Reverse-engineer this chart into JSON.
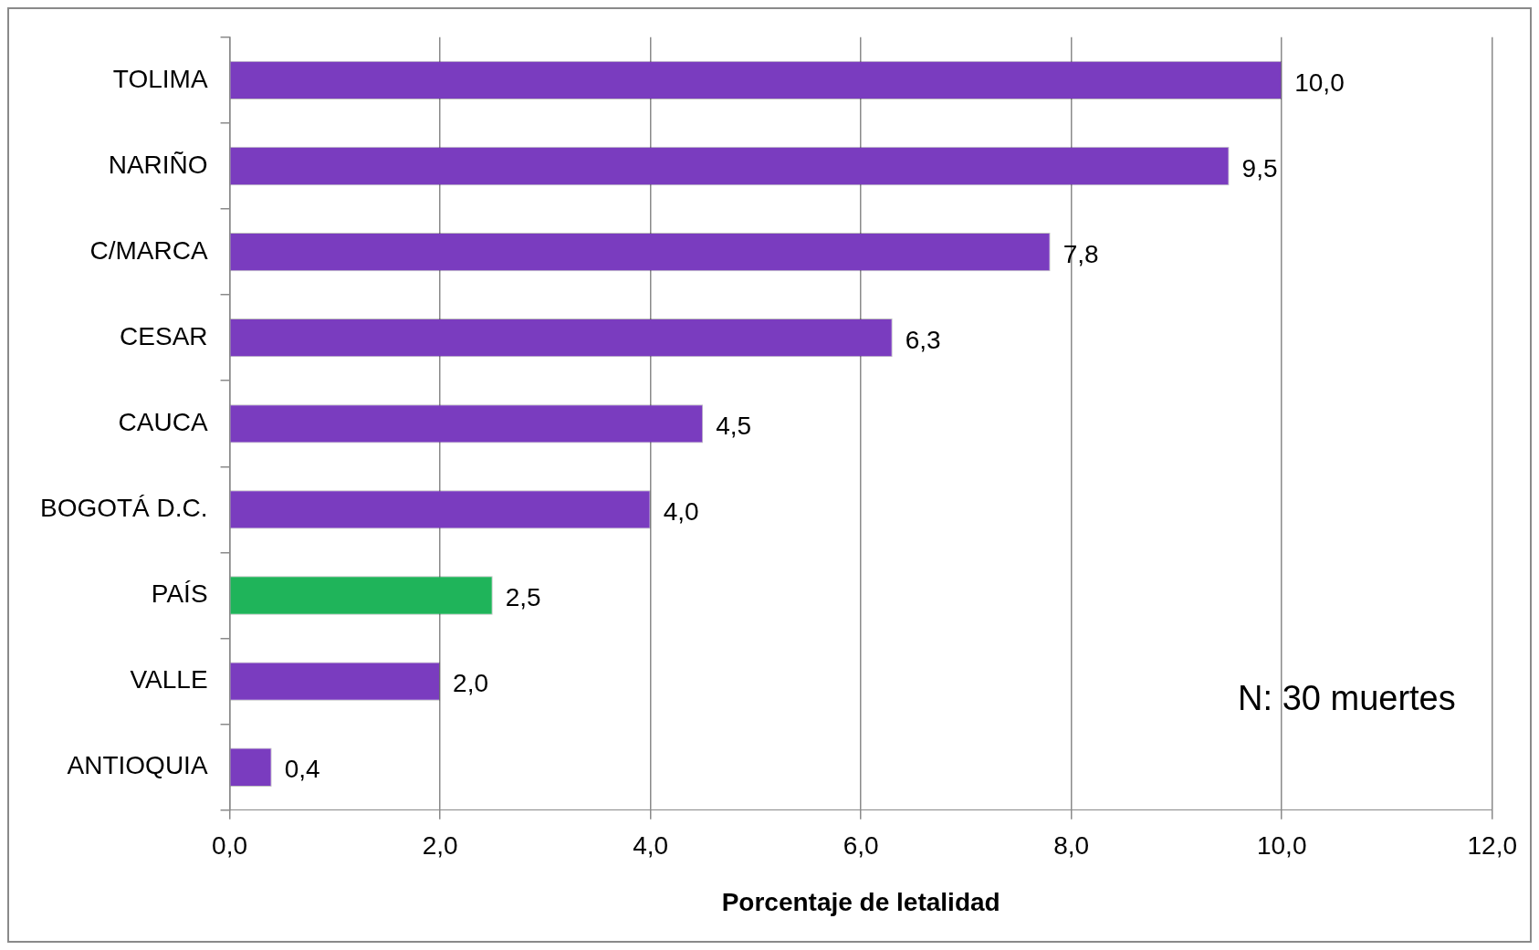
{
  "chart_data": {
    "type": "bar",
    "orientation": "horizontal",
    "xlabel": "Porcentaje de letalidad",
    "categories": [
      "TOLIMA",
      "NARIÑO",
      "C/MARCA",
      "CESAR",
      "CAUCA",
      "BOGOTÁ D.C.",
      "PAÍS",
      "VALLE",
      "ANTIOQUIA"
    ],
    "values": [
      10.0,
      9.5,
      7.8,
      6.3,
      4.5,
      4.0,
      2.5,
      2.0,
      0.4
    ],
    "colors": [
      "#7a3cbf",
      "#7a3cbf",
      "#7a3cbf",
      "#7a3cbf",
      "#7a3cbf",
      "#7a3cbf",
      "#1fb45a",
      "#7a3cbf",
      "#7a3cbf"
    ],
    "value_labels": [
      "10,0",
      "9,5",
      "7,8",
      "6,3",
      "4,5",
      "4,0",
      "2,5",
      "2,0",
      "0,4"
    ],
    "xlim": [
      0,
      12
    ],
    "xticks": [
      {
        "value": 0,
        "label": "0,0"
      },
      {
        "value": 2,
        "label": "2,0"
      },
      {
        "value": 4,
        "label": "4,0"
      },
      {
        "value": 6,
        "label": "6,0"
      },
      {
        "value": 8,
        "label": "8,0"
      },
      {
        "value": 10,
        "label": "10,0"
      },
      {
        "value": 12,
        "label": "12,0"
      }
    ],
    "grid": "x",
    "legend": false,
    "annotations": [
      "N: 30 muertes"
    ]
  }
}
